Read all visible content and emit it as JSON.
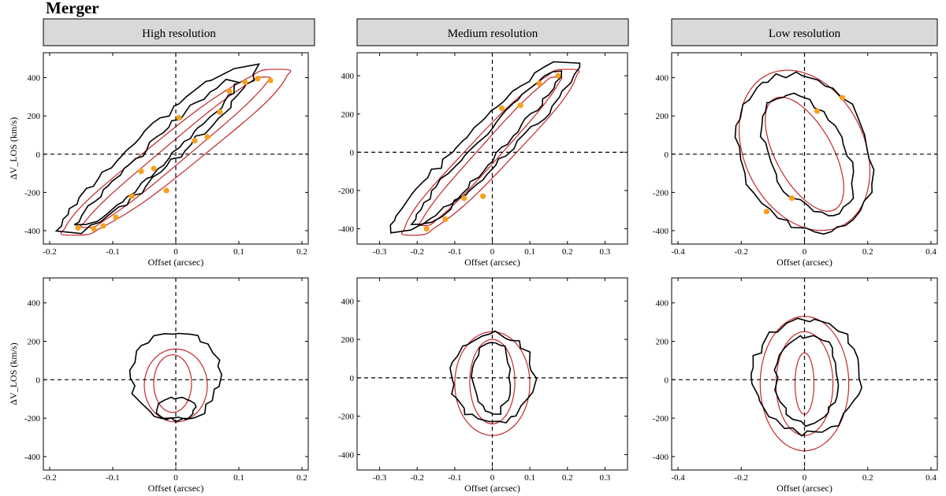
{
  "figure": {
    "title": "Merger",
    "columns": [
      "High resolution",
      "Medium resolution",
      "Low resolution"
    ]
  },
  "colors": {
    "data_contour": "#000000",
    "model_contour": "#c0282b",
    "negative_contour": "#888888",
    "points": "#f6a21e",
    "header_fill": "#d9d9d9"
  },
  "chart_data": [
    {
      "type": "scatter",
      "panel": "top-high",
      "xlabel": "Offset (arcsec)",
      "ylabel": "ΔV_LOS (km/s)",
      "xlim": [
        -0.21,
        0.21
      ],
      "ylim": [
        -470,
        530
      ],
      "xticks": [
        -0.2,
        -0.1,
        0.0,
        0.1,
        0.2
      ],
      "xticklabels": [
        "-0.2",
        "-0.1",
        "0",
        "0.1",
        "0.2"
      ],
      "yticks": [
        -400,
        -200,
        0,
        200,
        400
      ],
      "yticklabels": [
        "-400",
        "-200",
        "0",
        "200",
        "400"
      ],
      "points": [
        [
          -0.155,
          -385
        ],
        [
          -0.13,
          -390
        ],
        [
          -0.115,
          -375
        ],
        [
          -0.095,
          -330
        ],
        [
          -0.07,
          -220
        ],
        [
          -0.055,
          -90
        ],
        [
          -0.035,
          -75
        ],
        [
          -0.015,
          -190
        ],
        [
          0.005,
          190
        ],
        [
          0.03,
          70
        ],
        [
          0.05,
          90
        ],
        [
          0.07,
          220
        ],
        [
          0.085,
          330
        ],
        [
          0.11,
          375
        ],
        [
          0.13,
          395
        ],
        [
          0.15,
          385
        ]
      ]
    },
    {
      "type": "scatter",
      "panel": "top-medium",
      "xlabel": "Offset (arcsec)",
      "ylabel": "",
      "xlim": [
        -0.36,
        0.36
      ],
      "ylim": [
        -480,
        520
      ],
      "xticks": [
        -0.3,
        -0.2,
        -0.1,
        0.0,
        0.1,
        0.2,
        0.3
      ],
      "xticklabels": [
        "-0.3",
        "-0.2",
        "-0.1",
        "0",
        "0.1",
        "0.2",
        "0.3"
      ],
      "yticks": [
        -400,
        -200,
        0,
        200,
        400
      ],
      "yticklabels": [
        "-400",
        "-200",
        "0",
        "200",
        "400"
      ],
      "points": [
        [
          -0.175,
          -400
        ],
        [
          -0.125,
          -350
        ],
        [
          -0.075,
          -240
        ],
        [
          -0.025,
          -230
        ],
        [
          0.025,
          230
        ],
        [
          0.075,
          245
        ],
        [
          0.125,
          360
        ],
        [
          0.175,
          400
        ]
      ]
    },
    {
      "type": "scatter",
      "panel": "top-low",
      "xlabel": "Offset (arcsec)",
      "ylabel": "",
      "xlim": [
        -0.42,
        0.42
      ],
      "ylim": [
        -470,
        530
      ],
      "xticks": [
        -0.4,
        -0.2,
        0.0,
        0.2,
        0.4
      ],
      "xticklabels": [
        "-0.4",
        "-0.2",
        "0",
        "0.2",
        "0.4"
      ],
      "yticks": [
        -400,
        -200,
        0,
        200,
        400
      ],
      "yticklabels": [
        "-400",
        "-200",
        "0",
        "200",
        "400"
      ],
      "points": [
        [
          -0.12,
          -300
        ],
        [
          -0.04,
          -230
        ],
        [
          0.04,
          225
        ],
        [
          0.12,
          295
        ]
      ]
    },
    {
      "type": "scatter",
      "panel": "bottom-high",
      "xlabel": "Offset (arcsec)",
      "ylabel": "ΔV_LOS (km/s)",
      "xlim": [
        -0.21,
        0.21
      ],
      "ylim": [
        -470,
        530
      ],
      "xticks": [
        -0.2,
        -0.1,
        0.0,
        0.1,
        0.2
      ],
      "xticklabels": [
        "-0.2",
        "-0.1",
        "0",
        "0.1",
        "0.2"
      ],
      "yticks": [
        -400,
        -200,
        0,
        200,
        400
      ],
      "yticklabels": [
        "-400",
        "-200",
        "0",
        "200",
        "400"
      ],
      "points": []
    },
    {
      "type": "scatter",
      "panel": "bottom-medium",
      "xlabel": "Offset (arcsec)",
      "ylabel": "",
      "xlim": [
        -0.36,
        0.36
      ],
      "ylim": [
        -480,
        520
      ],
      "xticks": [
        -0.3,
        -0.2,
        -0.1,
        0.0,
        0.1,
        0.2,
        0.3
      ],
      "xticklabels": [
        "-0.3",
        "-0.2",
        "-0.1",
        "0",
        "0.1",
        "0.2",
        "0.3"
      ],
      "yticks": [
        -400,
        -200,
        0,
        200,
        400
      ],
      "yticklabels": [
        "-400",
        "-200",
        "0",
        "200",
        "400"
      ],
      "points": []
    },
    {
      "type": "scatter",
      "panel": "bottom-low",
      "xlabel": "Offset (arcsec)",
      "ylabel": "",
      "xlim": [
        -0.42,
        0.42
      ],
      "ylim": [
        -470,
        530
      ],
      "xticks": [
        -0.4,
        -0.2,
        0.0,
        0.2,
        0.4
      ],
      "xticklabels": [
        "-0.4",
        "-0.2",
        "0",
        "0.2",
        "0.4"
      ],
      "yticks": [
        -400,
        -200,
        0,
        200,
        400
      ],
      "yticklabels": [
        "-400",
        "-200",
        "0",
        "200",
        "400"
      ],
      "points": []
    }
  ]
}
